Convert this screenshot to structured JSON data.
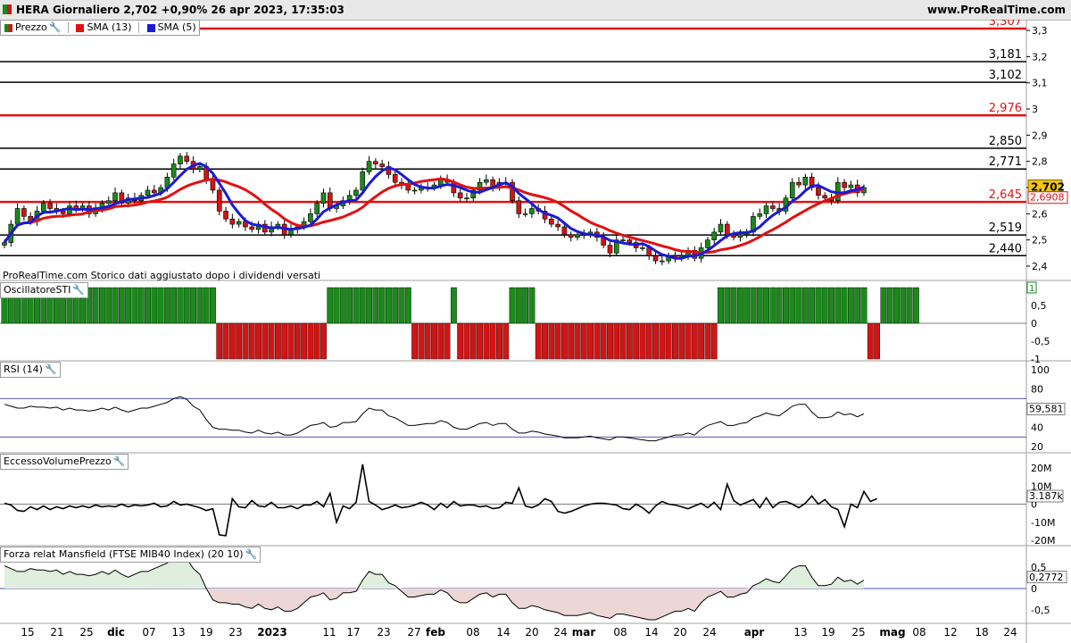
{
  "header": {
    "title": "HERA Giornaliero 2,702 +0,90% 26 apr 2023, 17:35:03",
    "site": "www.ProRealTime.com"
  },
  "colors": {
    "up": "#1a8a1a",
    "down": "#d41414",
    "sma5": "#1a1ad6",
    "sma13": "#e11111",
    "level_red": "#e11111",
    "level_black": "#000000"
  },
  "price_panel": {
    "legend": [
      {
        "label": "Prezzo",
        "icon": "candles-icon"
      },
      {
        "label": "SMA (13)",
        "color": "#e11111"
      },
      {
        "label": "SMA (5)",
        "color": "#1a1ad6"
      }
    ],
    "note": "ProRealTime.com  Storico dati aggiustato dopo i dividendi versati",
    "axis_ticks": [
      "3,3",
      "3,2",
      "3,1",
      "3",
      "2,9",
      "2,8",
      "2,7",
      "2,6",
      "2,5",
      "2,4"
    ],
    "levels": [
      {
        "value": 3.307,
        "label": "3,307",
        "color": "red"
      },
      {
        "value": 3.181,
        "label": "3,181",
        "color": "black"
      },
      {
        "value": 3.102,
        "label": "3,102",
        "color": "black"
      },
      {
        "value": 2.976,
        "label": "2,976",
        "color": "red"
      },
      {
        "value": 2.85,
        "label": "2,850",
        "color": "black"
      },
      {
        "value": 2.771,
        "label": "2,771",
        "color": "black"
      },
      {
        "value": 2.645,
        "label": "2,645",
        "color": "red"
      },
      {
        "value": 2.519,
        "label": "2,519",
        "color": "black"
      },
      {
        "value": 2.44,
        "label": "2,440",
        "color": "black"
      }
    ],
    "last_price": "2,702",
    "sma_value": "2,6908"
  },
  "sti_panel": {
    "title": "OscillatoreSTI",
    "axis_ticks": [
      "1",
      "0,5",
      "0",
      "-0,5",
      "-1"
    ],
    "last_value": "1"
  },
  "rsi_panel": {
    "title": "RSI (14)",
    "axis_ticks": [
      "100",
      "80",
      "60",
      "40",
      "20"
    ],
    "last_value": "59,581"
  },
  "volume_panel": {
    "title": "EccessoVolumePrezzo",
    "axis_ticks": [
      "20M",
      "10M",
      "0",
      "-10M",
      "-20M"
    ],
    "last_value": "3.187k"
  },
  "mansfield_panel": {
    "title": "Forza relat Mansfield (FTSE MIB40 Index) (20 10)",
    "axis_ticks": [
      "0,5",
      "0",
      "-0,5"
    ],
    "last_value": "0,2772"
  },
  "x_axis": [
    "15",
    "21",
    "25",
    "dic",
    "07",
    "13",
    "19",
    "23",
    "2023",
    "11",
    "17",
    "23",
    "27",
    "feb",
    "08",
    "14",
    "20",
    "24",
    "mar",
    "08",
    "14",
    "20",
    "24",
    "apr",
    "13",
    "19",
    "25",
    "mag",
    "08",
    "12",
    "18",
    "24"
  ],
  "chart_data": {
    "type": "candlestick",
    "series": [
      {
        "name": "Prezzo",
        "values": [
          2.49,
          2.56,
          2.62,
          2.59,
          2.57,
          2.61,
          2.64,
          2.62,
          2.61,
          2.6,
          2.63,
          2.62,
          2.63,
          2.6,
          2.62,
          2.64,
          2.65,
          2.68,
          2.64,
          2.66,
          2.65,
          2.67,
          2.69,
          2.68,
          2.7,
          2.74,
          2.79,
          2.82,
          2.8,
          2.77,
          2.78,
          2.73,
          2.69,
          2.61,
          2.58,
          2.56,
          2.57,
          2.55,
          2.54,
          2.56,
          2.53,
          2.55,
          2.56,
          2.52,
          2.54,
          2.55,
          2.57,
          2.6,
          2.64,
          2.68,
          2.62,
          2.63,
          2.65,
          2.67,
          2.69,
          2.76,
          2.8,
          2.79,
          2.78,
          2.75,
          2.72,
          2.71,
          2.69,
          2.69,
          2.7,
          2.7,
          2.71,
          2.73,
          2.72,
          2.68,
          2.66,
          2.66,
          2.69,
          2.72,
          2.73,
          2.7,
          2.72,
          2.72,
          2.65,
          2.6,
          2.6,
          2.62,
          2.61,
          2.58,
          2.56,
          2.55,
          2.52,
          2.51,
          2.52,
          2.52,
          2.53,
          2.51,
          2.48,
          2.45,
          2.5,
          2.5,
          2.49,
          2.47,
          2.47,
          2.44,
          2.42,
          2.42,
          2.44,
          2.43,
          2.44,
          2.46,
          2.43,
          2.47,
          2.5,
          2.53,
          2.56,
          2.52,
          2.51,
          2.52,
          2.53,
          2.59,
          2.6,
          2.63,
          2.62,
          2.61,
          2.66,
          2.72,
          2.71,
          2.74,
          2.7,
          2.67,
          2.66,
          2.65,
          2.72,
          2.7,
          2.71,
          2.68,
          2.7
        ]
      },
      {
        "name": "SMA (13)",
        "values": "computed from Prezzo"
      },
      {
        "name": "SMA (5)",
        "values": "computed from Prezzo"
      }
    ],
    "sti": [
      1,
      1,
      1,
      1,
      1,
      1,
      1,
      1,
      1,
      1,
      1,
      1,
      1,
      1,
      1,
      1,
      1,
      1,
      1,
      1,
      1,
      1,
      1,
      1,
      1,
      1,
      1,
      1,
      1,
      1,
      1,
      1,
      1,
      -1,
      -1,
      -1,
      -1,
      -1,
      -1,
      -1,
      -1,
      -1,
      -1,
      -1,
      -1,
      -1,
      -1,
      -1,
      -1,
      -1,
      1,
      1,
      1,
      1,
      1,
      1,
      1,
      1,
      1,
      1,
      1,
      1,
      1,
      -1,
      -1,
      -1,
      -1,
      -1,
      -1,
      1,
      -1,
      -1,
      -1,
      -1,
      -1,
      -1,
      -1,
      -1,
      1,
      1,
      1,
      1,
      -1,
      -1,
      -1,
      -1,
      -1,
      -1,
      -1,
      -1,
      -1,
      -1,
      -1,
      -1,
      -1,
      -1,
      -1,
      -1,
      -1,
      -1,
      -1,
      -1,
      -1,
      -1,
      -1,
      -1,
      -1,
      -1,
      -1,
      -1,
      1,
      1,
      1,
      1,
      1,
      1,
      1,
      1,
      1,
      1,
      1,
      1,
      1,
      1,
      1,
      1,
      1,
      1,
      1,
      1,
      1,
      1,
      1,
      -1,
      -1,
      1,
      1,
      1,
      1,
      1,
      1
    ],
    "rsi": [
      64,
      62,
      60,
      60,
      62,
      61,
      61,
      60,
      61,
      58,
      60,
      58,
      58,
      57,
      58,
      60,
      58,
      61,
      58,
      56,
      58,
      60,
      60,
      62,
      64,
      66,
      70,
      72,
      69,
      62,
      58,
      48,
      40,
      38,
      38,
      37,
      37,
      35,
      34,
      37,
      34,
      33,
      35,
      32,
      32,
      34,
      38,
      42,
      43,
      45,
      40,
      41,
      45,
      45,
      46,
      54,
      60,
      58,
      58,
      52,
      50,
      46,
      42,
      42,
      43,
      44,
      44,
      47,
      45,
      40,
      38,
      38,
      41,
      44,
      45,
      42,
      44,
      44,
      38,
      34,
      34,
      36,
      35,
      33,
      32,
      31,
      29,
      29,
      29,
      30,
      31,
      29,
      28,
      27,
      30,
      30,
      29,
      28,
      27,
      26,
      26,
      28,
      30,
      32,
      32,
      34,
      32,
      38,
      42,
      44,
      46,
      42,
      42,
      44,
      45,
      50,
      52,
      55,
      53,
      52,
      57,
      62,
      64,
      64,
      56,
      50,
      50,
      51,
      56,
      53,
      54,
      51,
      54
    ],
    "eccesso_volume": [
      0.5,
      -0.5,
      -3.5,
      -4.0,
      -1.5,
      -3.0,
      -1.0,
      -3.0,
      -1.5,
      -2.5,
      -1.0,
      -2.0,
      -1.0,
      -2.0,
      -0.5,
      -1.5,
      -1.0,
      -1.5,
      0,
      -1.5,
      -0.5,
      -1.0,
      -0.5,
      0.5,
      -1.5,
      -1.0,
      1.5,
      -0.5,
      0,
      -1.0,
      -2.0,
      -3.5,
      -2.5,
      -17.0,
      -17.5,
      3.0,
      -1.5,
      -2.0,
      2.0,
      -1.0,
      -1.5,
      1.0,
      -2.0,
      -2.0,
      -1.0,
      -2.5,
      -0.5,
      -0.5,
      1.5,
      -1.5,
      6.0,
      -10.0,
      -1.0,
      -2.5,
      1.0,
      22.0,
      1.5,
      -0.5,
      -3.0,
      -2.0,
      -0.5,
      -2.0,
      -1.5,
      -0.5,
      1.0,
      -0.5,
      -3.0,
      0.5,
      -2.0,
      1.5,
      -1.0,
      -0.5,
      -0.5,
      -1.5,
      -1.0,
      -2.5,
      -2.0,
      1.0,
      0.5,
      9.0,
      -1.0,
      -2.0,
      -0.5,
      3.0,
      1.5,
      -4.0,
      -5.0,
      -4.0,
      -2.5,
      -1.0,
      0,
      0.5,
      0.5,
      0,
      -0.5,
      -2.5,
      -3.0,
      0,
      -2.0,
      -5.0,
      -1.0,
      1.5,
      0,
      -0.5,
      -1.5,
      -2.5,
      -1.0,
      0.5,
      -2.0,
      1.0,
      -3.0,
      11.0,
      2.0,
      -0.5,
      1.0,
      2.5,
      -2.0,
      3.5,
      -2.0,
      1.0,
      1.5,
      0,
      -2.0,
      0.5,
      4.5,
      0,
      2.5,
      -1.5,
      -3.0,
      -12.5,
      0,
      -2.0,
      7.0,
      1.5,
      3.0
    ]
  }
}
